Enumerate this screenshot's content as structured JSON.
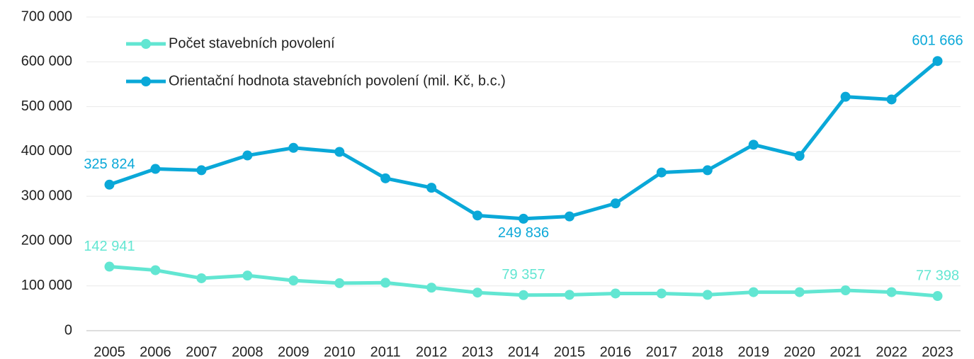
{
  "chart_data": {
    "type": "line",
    "categories": [
      "2005",
      "2006",
      "2007",
      "2008",
      "2009",
      "2010",
      "2011",
      "2012",
      "2013",
      "2014",
      "2015",
      "2016",
      "2017",
      "2018",
      "2019",
      "2020",
      "2021",
      "2022",
      "2023"
    ],
    "series": [
      {
        "name": "Počet stavebních povolení",
        "color": "#62e6d2",
        "values": [
          142941,
          135000,
          117000,
          123000,
          112000,
          106000,
          107000,
          96000,
          85000,
          79357,
          80000,
          83000,
          83000,
          80000,
          86000,
          86000,
          90000,
          86000,
          77398
        ],
        "value_labels": [
          "142 941",
          null,
          null,
          null,
          null,
          null,
          null,
          null,
          null,
          "79 357",
          null,
          null,
          null,
          null,
          null,
          null,
          null,
          null,
          "77 398"
        ]
      },
      {
        "name": "Orientační hodnota stavebních povolení (mil. Kč, b.c.)",
        "color": "#0aa8d8",
        "values": [
          325824,
          361000,
          358000,
          391000,
          408000,
          399000,
          340000,
          319000,
          257000,
          249836,
          255000,
          284000,
          353000,
          358000,
          415000,
          390000,
          522000,
          516000,
          601666
        ],
        "value_labels": [
          "325 824",
          null,
          null,
          null,
          null,
          null,
          null,
          null,
          null,
          "249 836",
          null,
          null,
          null,
          null,
          null,
          null,
          null,
          null,
          "601 666"
        ]
      }
    ],
    "ylim": [
      0,
      700000
    ],
    "yticks": [
      0,
      {
        "value": 100000,
        "label": "100 000"
      },
      {
        "value": 200000,
        "label": "200 000"
      },
      {
        "value": 300000,
        "label": "300 000"
      },
      {
        "value": 400000,
        "label": "400 000"
      },
      {
        "value": 500000,
        "label": "500 000"
      },
      {
        "value": 600000,
        "label": "600 000"
      },
      {
        "value": 700000,
        "label": "700 000"
      }
    ],
    "grid": true,
    "legend": "top-left"
  }
}
